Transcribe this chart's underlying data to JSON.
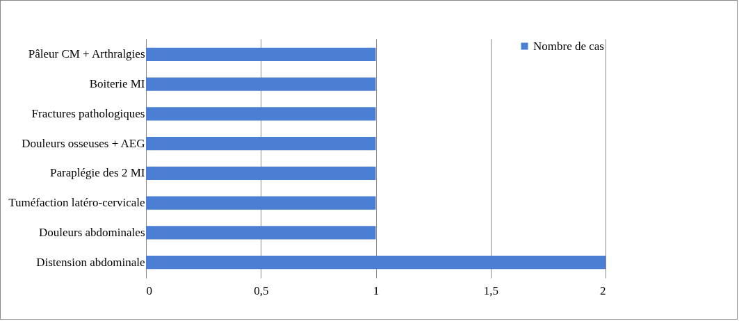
{
  "chart_data": {
    "type": "bar",
    "orientation": "horizontal",
    "categories": [
      "Pâleur CM + Arthralgies",
      "Boiterie MI",
      "Fractures pathologiques",
      "Douleurs osseuses + AEG",
      "Paraplégie des 2 MI",
      "Tuméfaction latéro-cervicale",
      "Douleurs abdominales",
      "Distension abdominale"
    ],
    "series": [
      {
        "name": "Nombre de cas",
        "color": "#4a7fd4",
        "values": [
          1,
          1,
          1,
          1,
          1,
          1,
          1,
          2
        ]
      }
    ],
    "xlim": [
      0,
      2
    ],
    "xticks": [
      0,
      {
        "value": 0.5,
        "label": "0,5"
      },
      1,
      {
        "value": 1.5,
        "label": "1,5"
      },
      2
    ],
    "grid": "x",
    "legend": "top right"
  }
}
